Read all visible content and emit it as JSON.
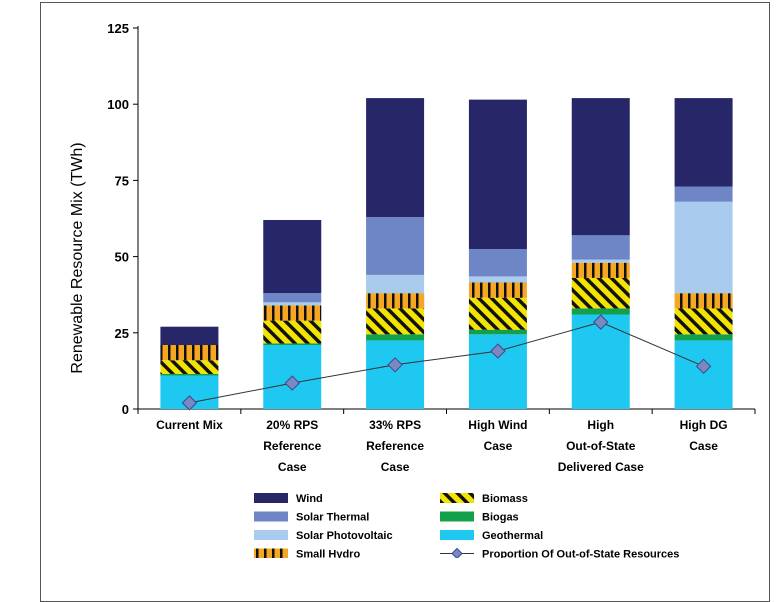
{
  "chart_data": {
    "type": "bar",
    "stacked": true,
    "title": "",
    "xlabel": "",
    "ylabel": "Renewable Resource Mix (TWh)",
    "ylim": [
      0,
      125
    ],
    "yticks": [
      0,
      25,
      50,
      75,
      100,
      125
    ],
    "categories": [
      [
        "Current Mix"
      ],
      [
        "20% RPS",
        "Reference",
        "Case"
      ],
      [
        "33% RPS",
        "Reference",
        "Case"
      ],
      [
        "High Wind",
        "Case"
      ],
      [
        "High",
        "Out-of-State",
        "Delivered Case"
      ],
      [
        "High DG",
        "Case"
      ]
    ],
    "series": [
      {
        "name": "Geothermal",
        "color": "#1ec8f0",
        "values": [
          11,
          21,
          22.5,
          24.5,
          31,
          22.5
        ]
      },
      {
        "name": "Biogas",
        "color": "#13a04a",
        "values": [
          0.5,
          0.5,
          2,
          1.5,
          2,
          2
        ]
      },
      {
        "name": "Biomass",
        "color": "#f2e400",
        "pattern": "hatch",
        "values": [
          4.5,
          7.5,
          8.5,
          10.5,
          10,
          8.5
        ]
      },
      {
        "name": "Small Hydro",
        "color": "#f5a623",
        "pattern": "bars",
        "values": [
          5,
          5,
          5,
          5,
          5,
          5
        ]
      },
      {
        "name": "Solar Photovoltaic",
        "color": "#a9cbee",
        "values": [
          0,
          1,
          6,
          2,
          1,
          30
        ]
      },
      {
        "name": "Solar Thermal",
        "color": "#6e85c6",
        "values": [
          0,
          3,
          19,
          9,
          8,
          5
        ]
      },
      {
        "name": "Wind",
        "color": "#262668",
        "values": [
          6,
          24,
          39,
          49,
          45,
          29
        ]
      }
    ],
    "line_series": {
      "name": "Proportion Of Out-of-State Resources",
      "color": "#7889c4",
      "values": [
        2,
        8.5,
        14.5,
        19,
        28.5,
        14
      ]
    },
    "legend": {
      "placement": "bottom",
      "columns": [
        [
          "Wind",
          "Solar Thermal",
          "Solar Photovoltaic",
          "Small Hydro"
        ],
        [
          "Biomass",
          "Biogas",
          "Geothermal",
          "Proportion Of Out-of-State Resources"
        ]
      ]
    },
    "grid": false
  }
}
